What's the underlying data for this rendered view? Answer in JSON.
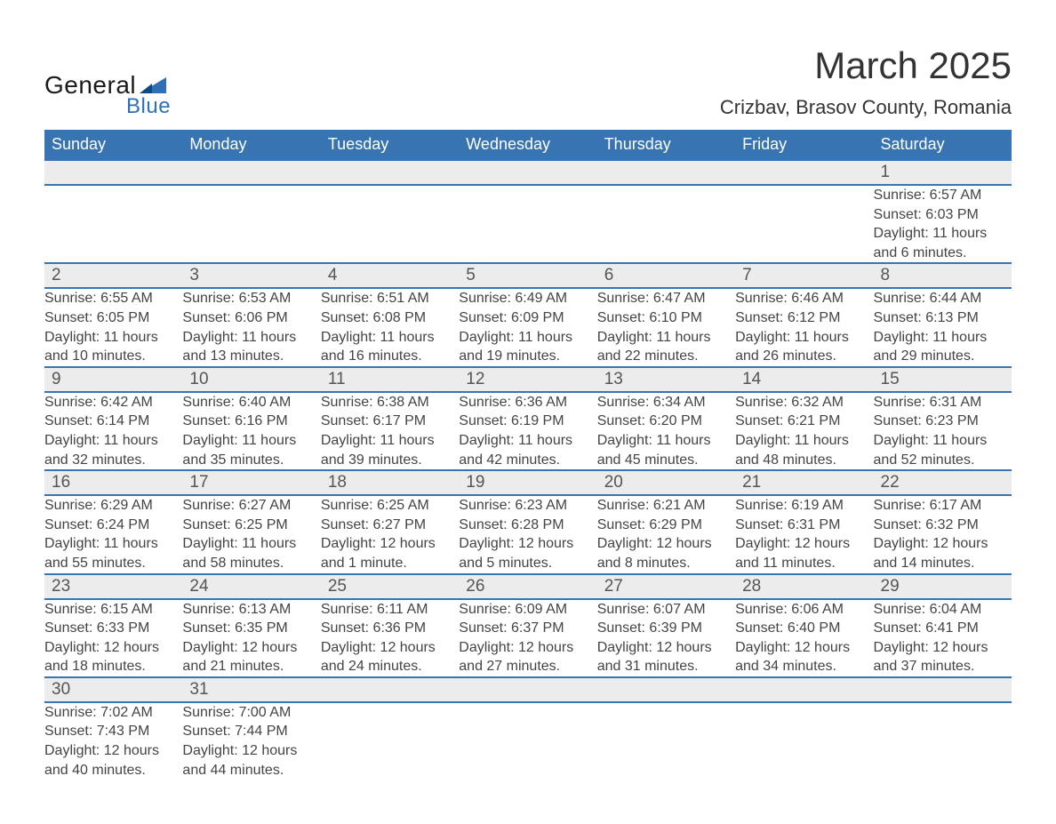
{
  "logo": {
    "text1": "General",
    "text2": "Blue"
  },
  "title": "March 2025",
  "location": "Crizbav, Brasov County, Romania",
  "weekday_headers": [
    "Sunday",
    "Monday",
    "Tuesday",
    "Wednesday",
    "Thursday",
    "Friday",
    "Saturday"
  ],
  "colors": {
    "header_bg": "#3874b2",
    "header_fg": "#ffffff",
    "daynum_bg": "#ececec",
    "row_border": "#3874b2",
    "text": "#444444",
    "logo_blue": "#2f6fb5"
  },
  "weeks": [
    [
      null,
      null,
      null,
      null,
      null,
      null,
      {
        "n": "1",
        "sunrise": "Sunrise: 6:57 AM",
        "sunset": "Sunset: 6:03 PM",
        "day1": "Daylight: 11 hours",
        "day2": "and 6 minutes."
      }
    ],
    [
      {
        "n": "2",
        "sunrise": "Sunrise: 6:55 AM",
        "sunset": "Sunset: 6:05 PM",
        "day1": "Daylight: 11 hours",
        "day2": "and 10 minutes."
      },
      {
        "n": "3",
        "sunrise": "Sunrise: 6:53 AM",
        "sunset": "Sunset: 6:06 PM",
        "day1": "Daylight: 11 hours",
        "day2": "and 13 minutes."
      },
      {
        "n": "4",
        "sunrise": "Sunrise: 6:51 AM",
        "sunset": "Sunset: 6:08 PM",
        "day1": "Daylight: 11 hours",
        "day2": "and 16 minutes."
      },
      {
        "n": "5",
        "sunrise": "Sunrise: 6:49 AM",
        "sunset": "Sunset: 6:09 PM",
        "day1": "Daylight: 11 hours",
        "day2": "and 19 minutes."
      },
      {
        "n": "6",
        "sunrise": "Sunrise: 6:47 AM",
        "sunset": "Sunset: 6:10 PM",
        "day1": "Daylight: 11 hours",
        "day2": "and 22 minutes."
      },
      {
        "n": "7",
        "sunrise": "Sunrise: 6:46 AM",
        "sunset": "Sunset: 6:12 PM",
        "day1": "Daylight: 11 hours",
        "day2": "and 26 minutes."
      },
      {
        "n": "8",
        "sunrise": "Sunrise: 6:44 AM",
        "sunset": "Sunset: 6:13 PM",
        "day1": "Daylight: 11 hours",
        "day2": "and 29 minutes."
      }
    ],
    [
      {
        "n": "9",
        "sunrise": "Sunrise: 6:42 AM",
        "sunset": "Sunset: 6:14 PM",
        "day1": "Daylight: 11 hours",
        "day2": "and 32 minutes."
      },
      {
        "n": "10",
        "sunrise": "Sunrise: 6:40 AM",
        "sunset": "Sunset: 6:16 PM",
        "day1": "Daylight: 11 hours",
        "day2": "and 35 minutes."
      },
      {
        "n": "11",
        "sunrise": "Sunrise: 6:38 AM",
        "sunset": "Sunset: 6:17 PM",
        "day1": "Daylight: 11 hours",
        "day2": "and 39 minutes."
      },
      {
        "n": "12",
        "sunrise": "Sunrise: 6:36 AM",
        "sunset": "Sunset: 6:19 PM",
        "day1": "Daylight: 11 hours",
        "day2": "and 42 minutes."
      },
      {
        "n": "13",
        "sunrise": "Sunrise: 6:34 AM",
        "sunset": "Sunset: 6:20 PM",
        "day1": "Daylight: 11 hours",
        "day2": "and 45 minutes."
      },
      {
        "n": "14",
        "sunrise": "Sunrise: 6:32 AM",
        "sunset": "Sunset: 6:21 PM",
        "day1": "Daylight: 11 hours",
        "day2": "and 48 minutes."
      },
      {
        "n": "15",
        "sunrise": "Sunrise: 6:31 AM",
        "sunset": "Sunset: 6:23 PM",
        "day1": "Daylight: 11 hours",
        "day2": "and 52 minutes."
      }
    ],
    [
      {
        "n": "16",
        "sunrise": "Sunrise: 6:29 AM",
        "sunset": "Sunset: 6:24 PM",
        "day1": "Daylight: 11 hours",
        "day2": "and 55 minutes."
      },
      {
        "n": "17",
        "sunrise": "Sunrise: 6:27 AM",
        "sunset": "Sunset: 6:25 PM",
        "day1": "Daylight: 11 hours",
        "day2": "and 58 minutes."
      },
      {
        "n": "18",
        "sunrise": "Sunrise: 6:25 AM",
        "sunset": "Sunset: 6:27 PM",
        "day1": "Daylight: 12 hours",
        "day2": "and 1 minute."
      },
      {
        "n": "19",
        "sunrise": "Sunrise: 6:23 AM",
        "sunset": "Sunset: 6:28 PM",
        "day1": "Daylight: 12 hours",
        "day2": "and 5 minutes."
      },
      {
        "n": "20",
        "sunrise": "Sunrise: 6:21 AM",
        "sunset": "Sunset: 6:29 PM",
        "day1": "Daylight: 12 hours",
        "day2": "and 8 minutes."
      },
      {
        "n": "21",
        "sunrise": "Sunrise: 6:19 AM",
        "sunset": "Sunset: 6:31 PM",
        "day1": "Daylight: 12 hours",
        "day2": "and 11 minutes."
      },
      {
        "n": "22",
        "sunrise": "Sunrise: 6:17 AM",
        "sunset": "Sunset: 6:32 PM",
        "day1": "Daylight: 12 hours",
        "day2": "and 14 minutes."
      }
    ],
    [
      {
        "n": "23",
        "sunrise": "Sunrise: 6:15 AM",
        "sunset": "Sunset: 6:33 PM",
        "day1": "Daylight: 12 hours",
        "day2": "and 18 minutes."
      },
      {
        "n": "24",
        "sunrise": "Sunrise: 6:13 AM",
        "sunset": "Sunset: 6:35 PM",
        "day1": "Daylight: 12 hours",
        "day2": "and 21 minutes."
      },
      {
        "n": "25",
        "sunrise": "Sunrise: 6:11 AM",
        "sunset": "Sunset: 6:36 PM",
        "day1": "Daylight: 12 hours",
        "day2": "and 24 minutes."
      },
      {
        "n": "26",
        "sunrise": "Sunrise: 6:09 AM",
        "sunset": "Sunset: 6:37 PM",
        "day1": "Daylight: 12 hours",
        "day2": "and 27 minutes."
      },
      {
        "n": "27",
        "sunrise": "Sunrise: 6:07 AM",
        "sunset": "Sunset: 6:39 PM",
        "day1": "Daylight: 12 hours",
        "day2": "and 31 minutes."
      },
      {
        "n": "28",
        "sunrise": "Sunrise: 6:06 AM",
        "sunset": "Sunset: 6:40 PM",
        "day1": "Daylight: 12 hours",
        "day2": "and 34 minutes."
      },
      {
        "n": "29",
        "sunrise": "Sunrise: 6:04 AM",
        "sunset": "Sunset: 6:41 PM",
        "day1": "Daylight: 12 hours",
        "day2": "and 37 minutes."
      }
    ],
    [
      {
        "n": "30",
        "sunrise": "Sunrise: 7:02 AM",
        "sunset": "Sunset: 7:43 PM",
        "day1": "Daylight: 12 hours",
        "day2": "and 40 minutes."
      },
      {
        "n": "31",
        "sunrise": "Sunrise: 7:00 AM",
        "sunset": "Sunset: 7:44 PM",
        "day1": "Daylight: 12 hours",
        "day2": "and 44 minutes."
      },
      null,
      null,
      null,
      null,
      null
    ]
  ]
}
